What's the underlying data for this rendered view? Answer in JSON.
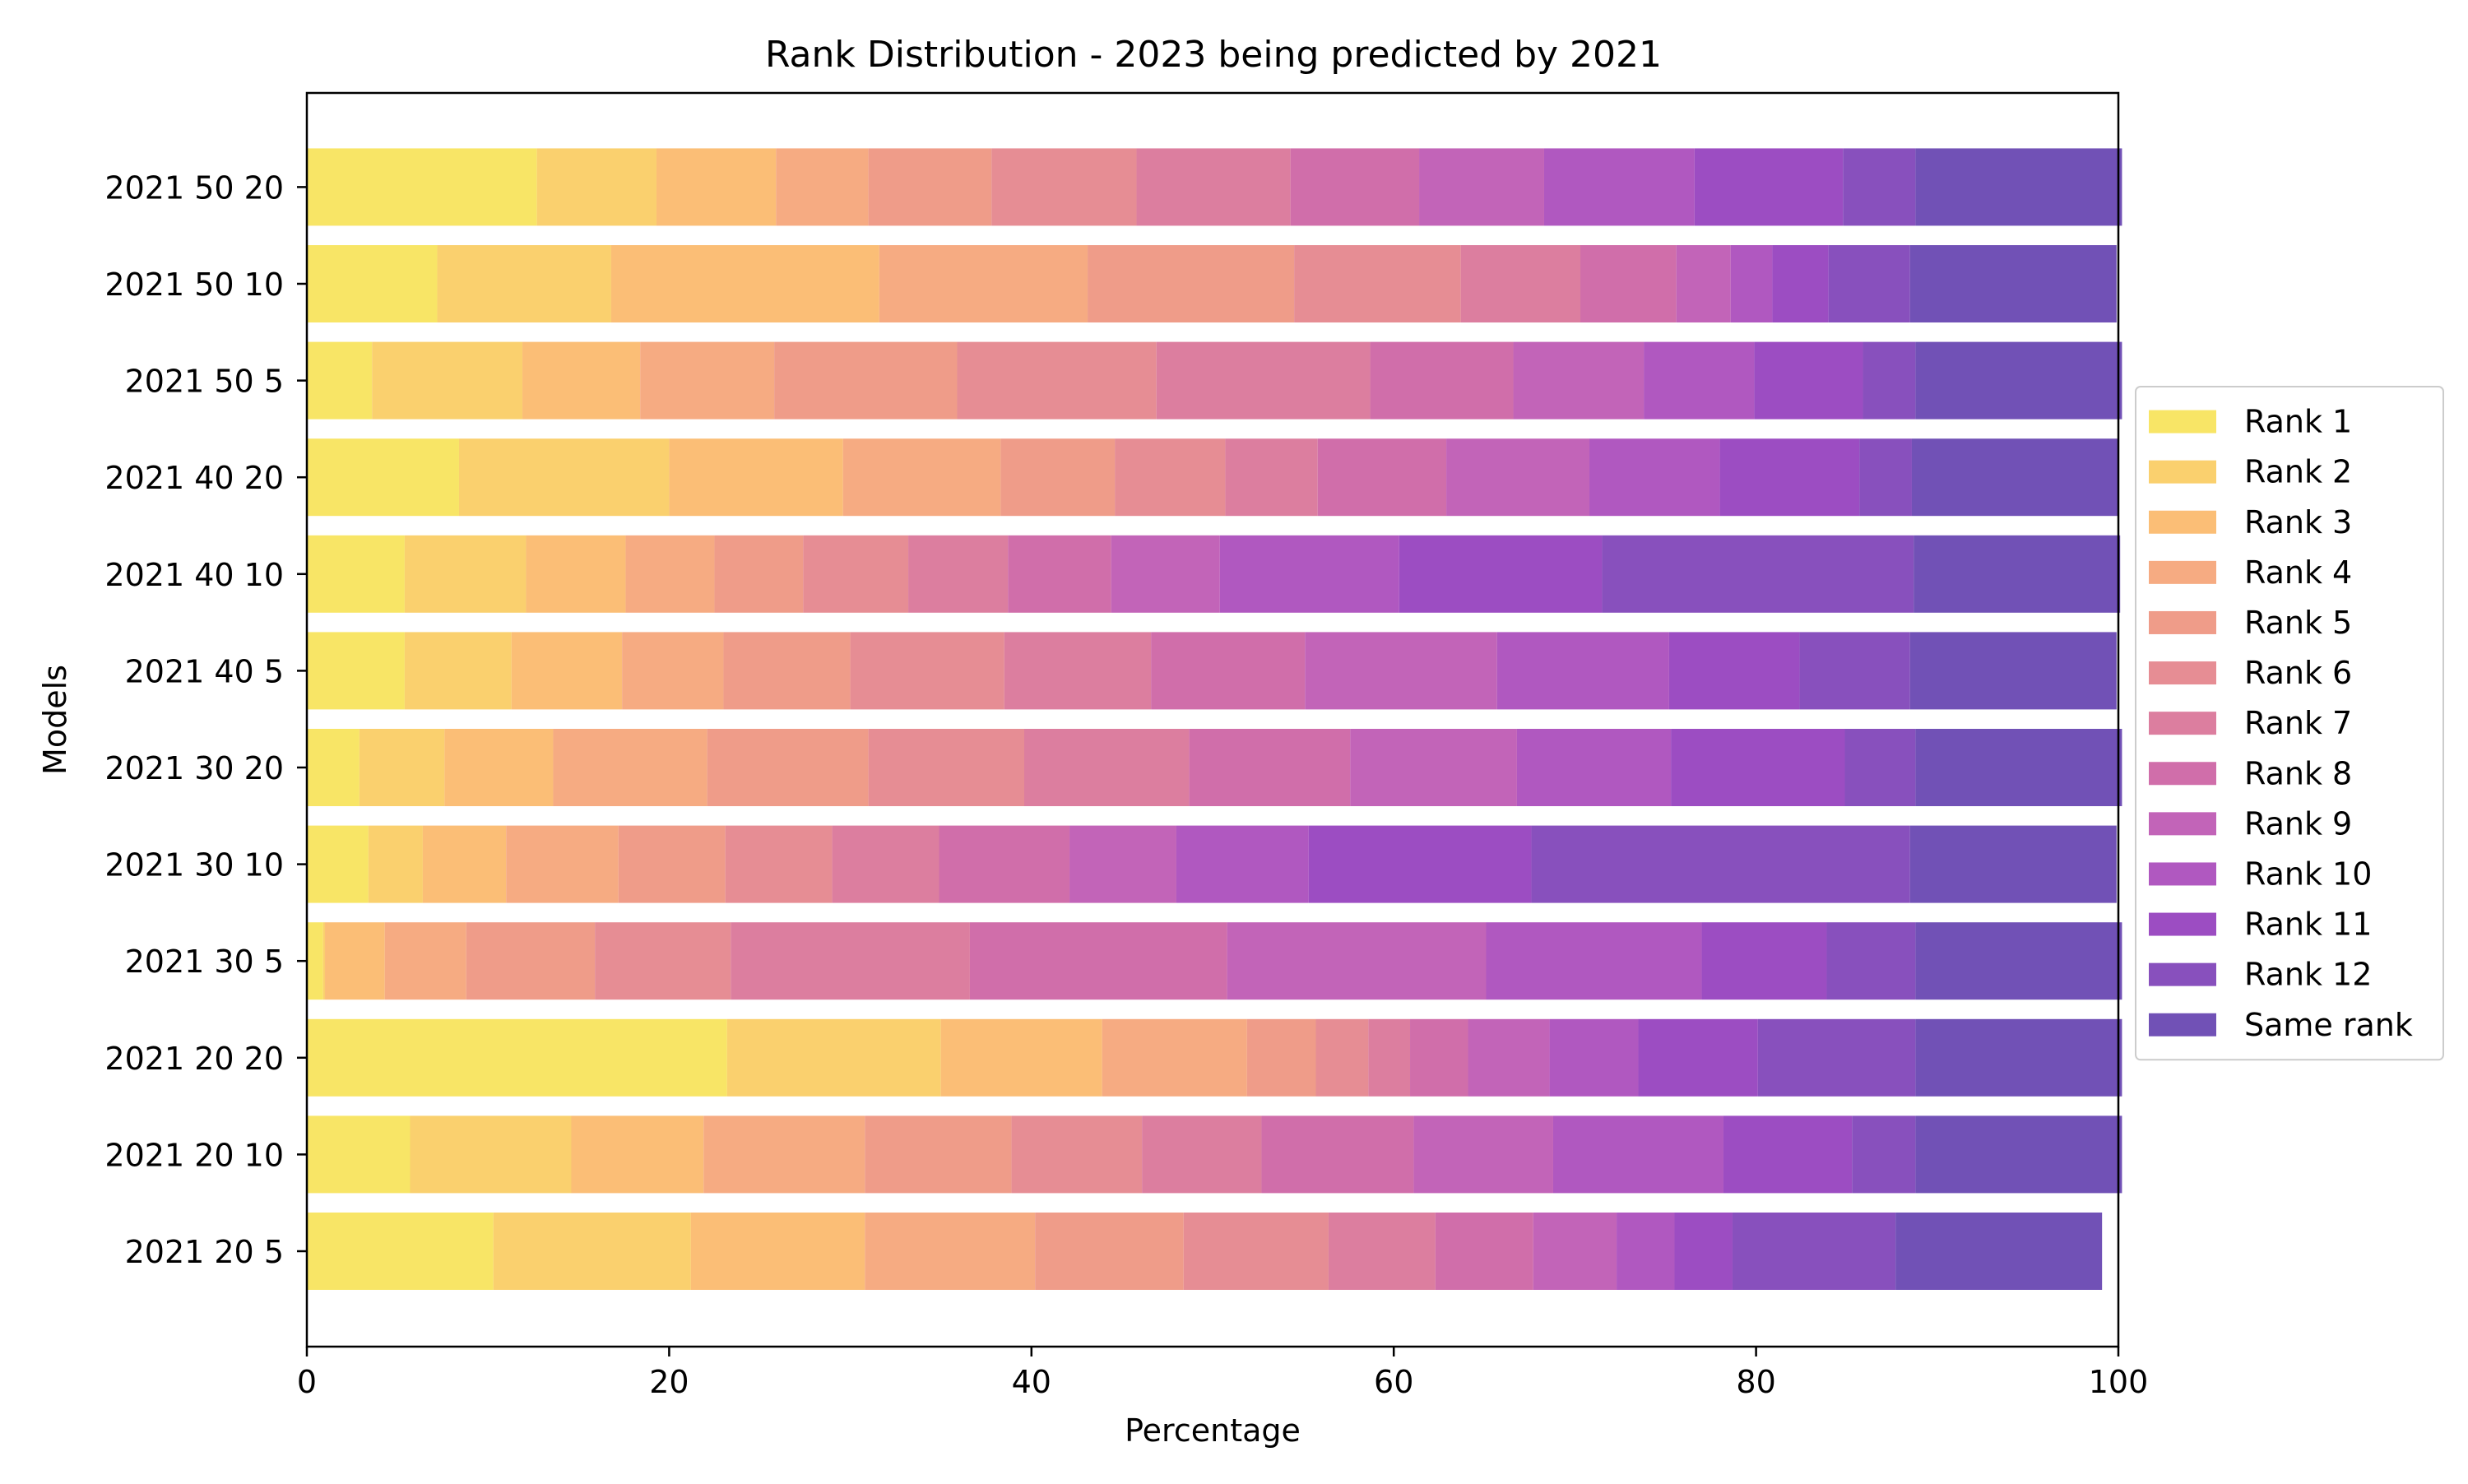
{
  "chart_data": {
    "type": "bar",
    "orientation": "horizontal",
    "stacked": true,
    "title": "Rank Distribution - 2023 being predicted by 2021",
    "xlabel": "Percentage",
    "ylabel": "Models",
    "xlim": [
      0,
      100
    ],
    "x_ticks": [
      0,
      20,
      40,
      60,
      80,
      100
    ],
    "grid": false,
    "legend_position": "right",
    "categories": [
      "2021 20 5",
      "2021 20 10",
      "2021 20 20",
      "2021 30 5",
      "2021 30 10",
      "2021 30 20",
      "2021 40 5",
      "2021 40 10",
      "2021 40 20",
      "2021 50 5",
      "2021 50 10",
      "2021 50 20"
    ],
    "series": [
      {
        "name": "Rank 1",
        "color": "#f8e566",
        "values": [
          10.3,
          5.7,
          23.2,
          0.9,
          3.4,
          2.9,
          5.4,
          5.4,
          8.4,
          3.6,
          7.2,
          12.7
        ]
      },
      {
        "name": "Rank 2",
        "color": "#fad06e",
        "values": [
          10.9,
          8.9,
          11.8,
          0.1,
          3.0,
          4.7,
          5.9,
          6.7,
          11.6,
          8.3,
          9.6,
          6.6
        ]
      },
      {
        "name": "Rank 3",
        "color": "#fbbe76",
        "values": [
          9.6,
          7.3,
          8.9,
          3.3,
          4.6,
          6.0,
          6.1,
          5.5,
          9.6,
          6.5,
          14.8,
          6.6
        ]
      },
      {
        "name": "Rank 4",
        "color": "#f6ab82",
        "values": [
          9.4,
          8.9,
          8.0,
          4.5,
          6.2,
          8.5,
          5.6,
          4.9,
          8.7,
          7.4,
          11.5,
          5.1
        ]
      },
      {
        "name": "Rank 5",
        "color": "#ef9c89",
        "values": [
          8.2,
          8.1,
          3.8,
          7.1,
          5.9,
          8.9,
          7.0,
          4.9,
          6.3,
          10.1,
          11.4,
          6.8
        ]
      },
      {
        "name": "Rank 6",
        "color": "#e68d94",
        "values": [
          8.0,
          7.2,
          2.9,
          7.5,
          5.9,
          8.6,
          8.5,
          5.8,
          6.1,
          11.0,
          9.2,
          8.0
        ]
      },
      {
        "name": "Rank 7",
        "color": "#dc7e9f",
        "values": [
          5.9,
          6.6,
          2.3,
          13.2,
          5.9,
          9.1,
          8.1,
          5.5,
          5.1,
          11.8,
          6.6,
          8.5
        ]
      },
      {
        "name": "Rank 8",
        "color": "#d06eaa",
        "values": [
          5.4,
          8.4,
          3.2,
          14.2,
          7.2,
          8.9,
          8.5,
          5.7,
          7.1,
          7.9,
          5.3,
          7.1
        ]
      },
      {
        "name": "Rank 9",
        "color": "#c264b8",
        "values": [
          4.6,
          7.7,
          4.5,
          14.3,
          5.9,
          9.2,
          10.6,
          6.0,
          7.9,
          7.2,
          3.0,
          6.9
        ]
      },
      {
        "name": "Rank 10",
        "color": "#b058c0",
        "values": [
          3.2,
          9.4,
          4.9,
          11.9,
          7.3,
          8.5,
          9.5,
          9.9,
          7.2,
          6.1,
          2.3,
          8.3
        ]
      },
      {
        "name": "Rank 11",
        "color": "#9c4dc2",
        "values": [
          3.2,
          7.1,
          6.6,
          6.9,
          12.3,
          9.6,
          7.2,
          11.2,
          7.7,
          6.0,
          3.1,
          8.2
        ]
      },
      {
        "name": "Rank 12",
        "color": "#8850bd",
        "values": [
          9.0,
          3.5,
          8.7,
          4.9,
          20.9,
          3.9,
          6.1,
          17.2,
          2.9,
          2.9,
          4.5,
          4.0
        ]
      },
      {
        "name": "Same rank",
        "color": "#7151b6",
        "values": [
          11.4,
          11.4,
          11.4,
          11.4,
          11.4,
          11.4,
          11.4,
          11.4,
          11.4,
          11.4,
          11.4,
          11.4
        ]
      }
    ]
  }
}
